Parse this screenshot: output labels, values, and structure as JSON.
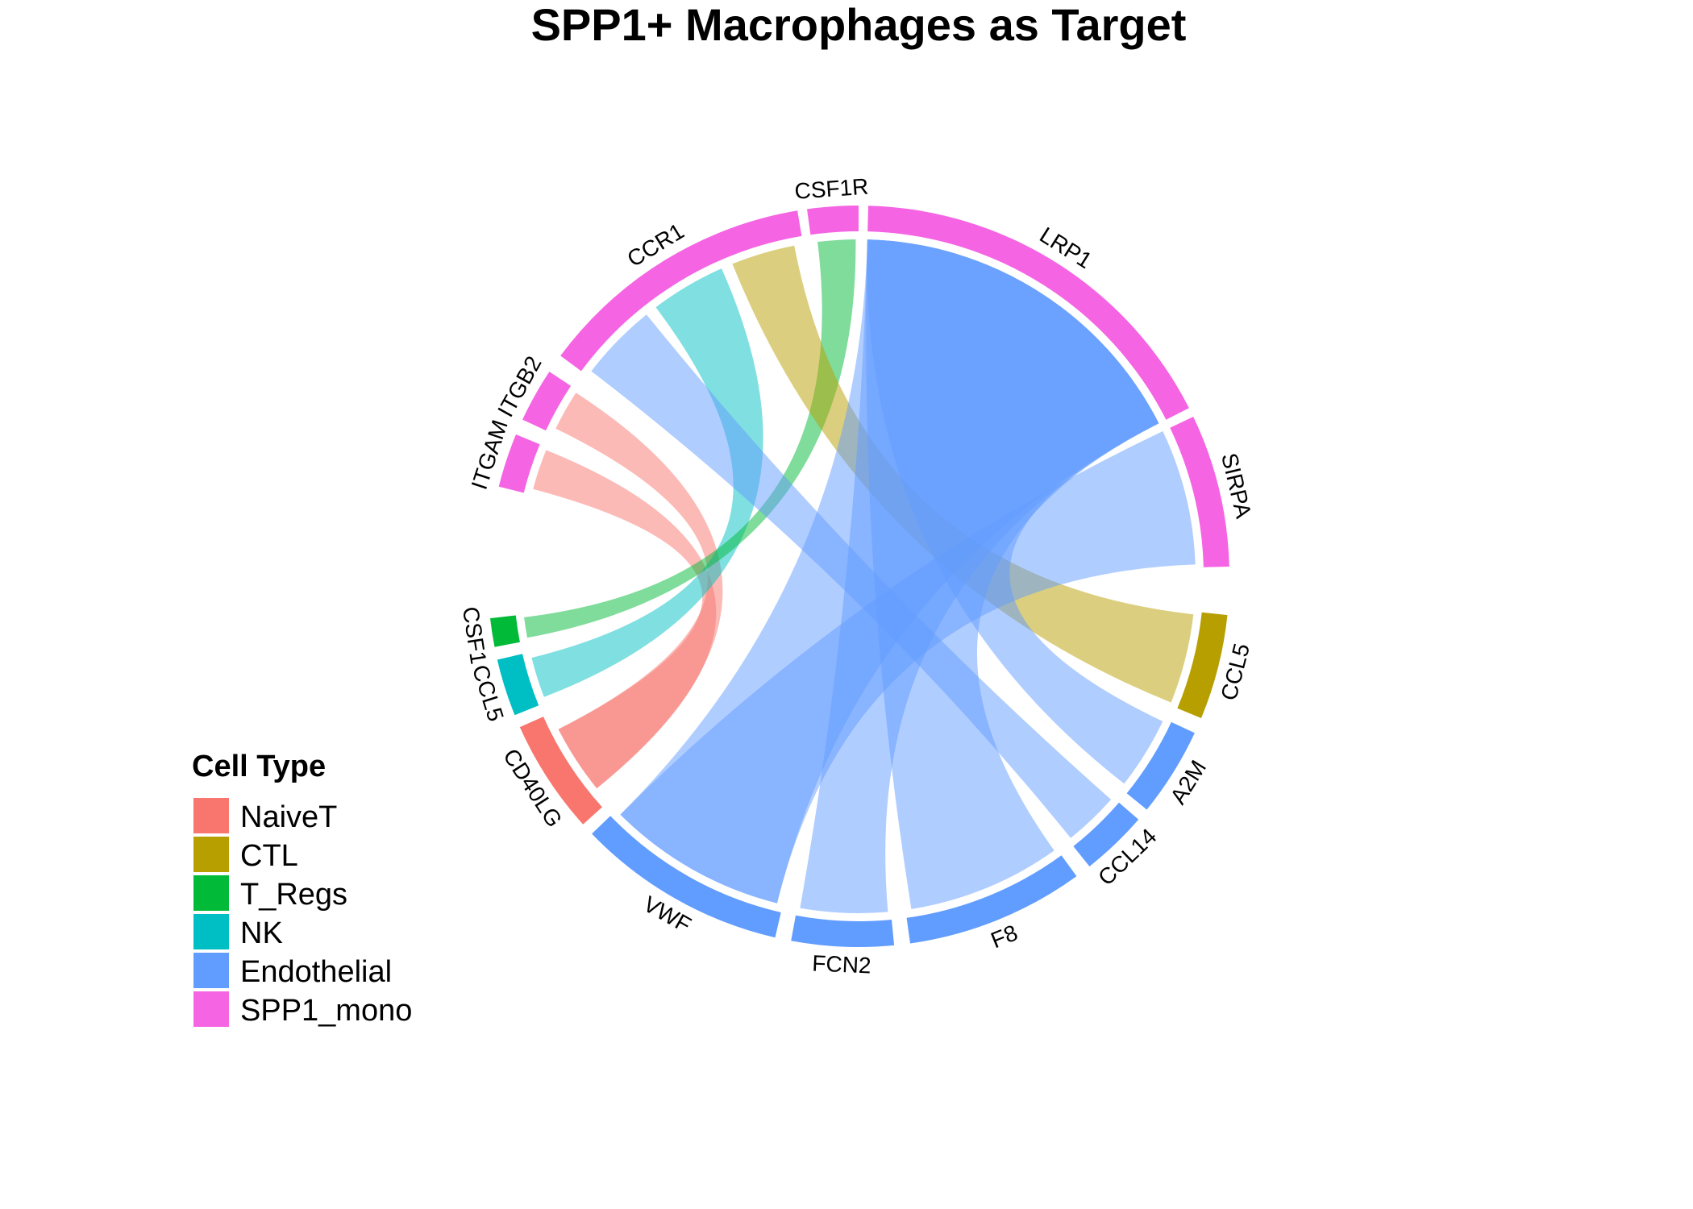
{
  "chart_data": {
    "type": "chord",
    "title": "SPP1+ Macrophages as Target",
    "legend": {
      "title": "Cell Type",
      "placement": "left-bottom",
      "entries": [
        {
          "name": "NaiveT",
          "color": "#F8766D"
        },
        {
          "name": "CTL",
          "color": "#B79F00"
        },
        {
          "name": "T_Regs",
          "color": "#00BA38"
        },
        {
          "name": "NK",
          "color": "#00BFC4"
        },
        {
          "name": "Endothelial",
          "color": "#619CFF"
        },
        {
          "name": "SPP1_mono",
          "color": "#F564E3"
        }
      ]
    },
    "segments": [
      {
        "id": "sirpa",
        "label": "SIRPA",
        "cell_type": "SPP1_mono"
      },
      {
        "id": "lrp1",
        "label": "LRP1",
        "cell_type": "SPP1_mono"
      },
      {
        "id": "csf1r",
        "label": "CSF1R",
        "cell_type": "SPP1_mono"
      },
      {
        "id": "ccr1",
        "label": "CCR1",
        "cell_type": "SPP1_mono"
      },
      {
        "id": "itgb2",
        "label": "ITGB2",
        "cell_type": "SPP1_mono"
      },
      {
        "id": "itgam",
        "label": "ITGAM",
        "cell_type": "SPP1_mono"
      },
      {
        "id": "csf1",
        "label": "CSF1",
        "cell_type": "T_Regs"
      },
      {
        "id": "ccl5-nk",
        "label": "CCL5",
        "cell_type": "NK"
      },
      {
        "id": "cd40lg",
        "label": "CD40LG",
        "cell_type": "NaiveT"
      },
      {
        "id": "vwf",
        "label": "VWF",
        "cell_type": "Endothelial"
      },
      {
        "id": "fcn2",
        "label": "FCN2",
        "cell_type": "Endothelial"
      },
      {
        "id": "f8",
        "label": "F8",
        "cell_type": "Endothelial"
      },
      {
        "id": "ccl14",
        "label": "CCL14",
        "cell_type": "Endothelial"
      },
      {
        "id": "a2m",
        "label": "A2M",
        "cell_type": "Endothelial"
      },
      {
        "id": "ccl5-ctl",
        "label": "CCL5",
        "cell_type": "CTL"
      }
    ],
    "links": [
      {
        "source": "CD40LG",
        "source_type": "NaiveT",
        "target": "ITGB2"
      },
      {
        "source": "CD40LG",
        "source_type": "NaiveT",
        "target": "ITGAM"
      },
      {
        "source": "CCL5",
        "source_type": "NK",
        "target": "CCR1"
      },
      {
        "source": "CSF1",
        "source_type": "T_Regs",
        "target": "CSF1R"
      },
      {
        "source": "CCL5",
        "source_type": "CTL",
        "target": "CCR1"
      },
      {
        "source": "VWF",
        "source_type": "Endothelial",
        "target": "LRP1"
      },
      {
        "source": "FCN2",
        "source_type": "Endothelial",
        "target": "LRP1"
      },
      {
        "source": "F8",
        "source_type": "Endothelial",
        "target": "LRP1"
      },
      {
        "source": "CCL14",
        "source_type": "Endothelial",
        "target": "CCR1"
      },
      {
        "source": "A2M",
        "source_type": "Endothelial",
        "target": "LRP1"
      },
      {
        "source": "VWF",
        "source_type": "Endothelial",
        "target": "SIRPA"
      }
    ]
  }
}
